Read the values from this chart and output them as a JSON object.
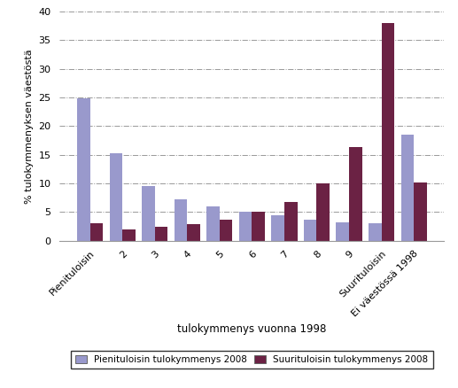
{
  "categories": [
    "Pienituloisin",
    "2",
    "3",
    "4",
    "5",
    "6",
    "7",
    "8",
    "9",
    "Suurituloisin",
    "Ei väestössä 1998"
  ],
  "pieni_values": [
    24.8,
    15.2,
    9.5,
    7.2,
    6.0,
    5.0,
    4.4,
    3.7,
    3.2,
    3.0,
    18.5
  ],
  "suuri_values": [
    3.0,
    2.0,
    2.4,
    2.8,
    3.6,
    5.0,
    6.8,
    10.0,
    16.3,
    38.0,
    10.2
  ],
  "pieni_color": "#9999CC",
  "suuri_color": "#6B2244",
  "xlabel": "tulokymmenys vuonna 1998",
  "ylabel": "% tulokymmenyksen väestöstä",
  "ylim": [
    0,
    40
  ],
  "yticks": [
    0,
    5,
    10,
    15,
    20,
    25,
    30,
    35,
    40
  ],
  "legend_pieni": "Pienituloisin tulokymmenys 2008",
  "legend_suuri": "Suurituloisin tulokymmenys 2008",
  "bar_width": 0.4,
  "background_color": "#ffffff",
  "grid_color": "#999999"
}
